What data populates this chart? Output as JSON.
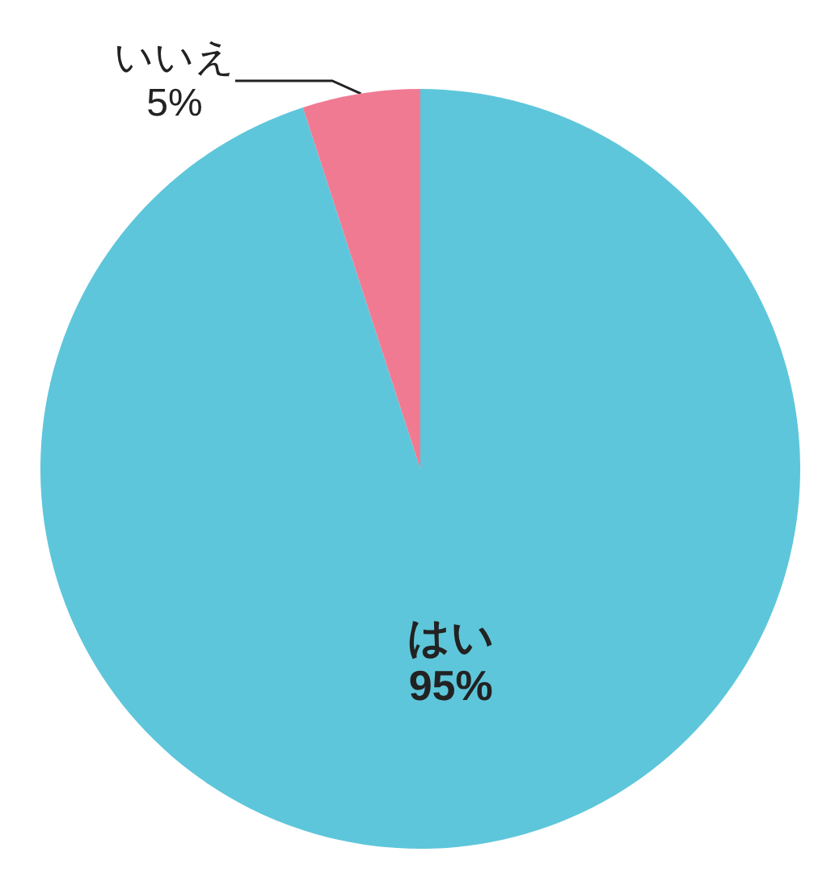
{
  "chart_data": {
    "type": "pie",
    "categories": [
      "はい",
      "いいえ"
    ],
    "values": [
      95,
      5
    ],
    "colors": [
      "#5ec6da",
      "#f07a92"
    ],
    "value_labels": [
      "95%",
      "5%"
    ]
  }
}
